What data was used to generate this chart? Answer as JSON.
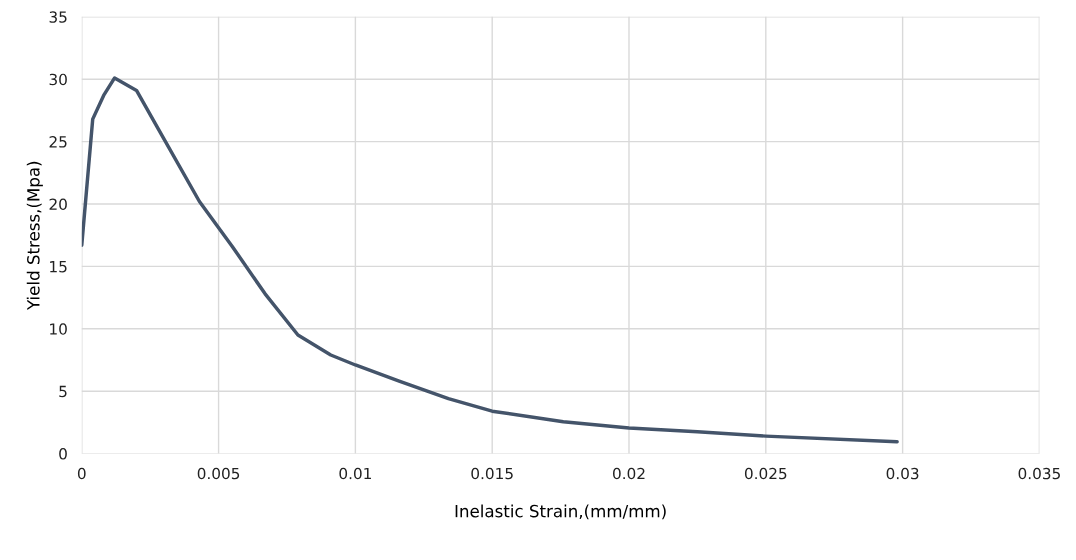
{
  "chart_data": {
    "type": "line",
    "xlabel": "Inelastic Strain,(mm/mm)",
    "ylabel": "Yield Stress,(Mpa)",
    "x": [
      0,
      0.0004,
      0.0008,
      0.0012,
      0.002,
      0.0028,
      0.0043,
      0.0055,
      0.0067,
      0.0079,
      0.0091,
      0.01,
      0.0116,
      0.0134,
      0.015,
      0.0176,
      0.02,
      0.0225,
      0.025,
      0.0298
    ],
    "series": [
      {
        "color": "#44546a",
        "values": [
          16.7,
          26.8,
          28.7,
          30.1,
          29.1,
          26.0,
          20.2,
          16.6,
          12.8,
          9.5,
          7.9,
          7.1,
          5.8,
          4.4,
          3.4,
          2.55,
          2.05,
          1.75,
          1.4,
          0.95
        ]
      }
    ],
    "xlim": [
      0,
      0.035
    ],
    "xticks": [
      0,
      0.005,
      0.01,
      0.015,
      0.02,
      0.025,
      0.03,
      0.035
    ],
    "ylim": [
      0,
      35
    ],
    "yticks": [
      0,
      5,
      10,
      15,
      20,
      25,
      30,
      35
    ],
    "grid": true
  }
}
